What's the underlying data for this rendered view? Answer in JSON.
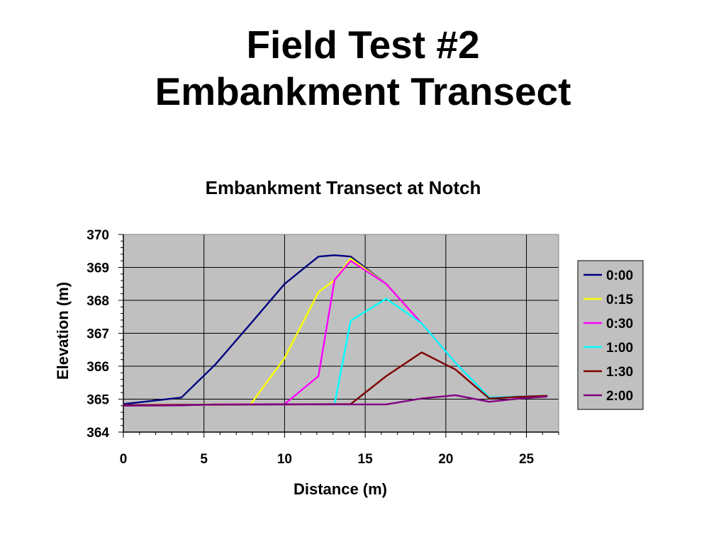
{
  "slide": {
    "title_line1": "Field Test #2",
    "title_line2": "Embankment Transect"
  },
  "chart_data": {
    "type": "line",
    "title": "Embankment Transect at Notch",
    "xlabel": "Distance (m)",
    "ylabel": "Elevation (m)",
    "xlim": [
      0,
      27
    ],
    "ylim": [
      364,
      370
    ],
    "xticks": [
      0,
      5,
      10,
      15,
      20,
      25
    ],
    "yticks": [
      364,
      365,
      366,
      367,
      368,
      369,
      370
    ],
    "grid": true,
    "plot_background": "#c0c0c0",
    "legend_position": "right",
    "series": [
      {
        "name": "0:00",
        "color": "#000080",
        "points": [
          [
            0,
            364.85
          ],
          [
            3.6,
            365.05
          ],
          [
            5.7,
            366.05
          ],
          [
            8,
            367.35
          ],
          [
            10,
            368.5
          ],
          [
            12.1,
            369.33
          ],
          [
            13.1,
            369.37
          ],
          [
            14.1,
            369.33
          ],
          [
            16.3,
            368.5
          ],
          [
            18.5,
            367.3
          ],
          [
            20.6,
            366.1
          ],
          [
            22.7,
            365.05
          ],
          [
            24.6,
            365.08
          ],
          [
            26.3,
            365.1
          ]
        ]
      },
      {
        "name": "0:15",
        "color": "#ffff00",
        "points": [
          [
            0,
            364.82
          ],
          [
            7.9,
            364.85
          ],
          [
            10,
            366.25
          ],
          [
            12.1,
            368.25
          ],
          [
            13.1,
            368.62
          ],
          [
            14.1,
            369.27
          ],
          [
            16.3,
            368.5
          ],
          [
            18.5,
            367.3
          ],
          [
            20.6,
            366.1
          ],
          [
            22.7,
            365.05
          ],
          [
            24.6,
            365.08
          ],
          [
            26.3,
            365.1
          ]
        ]
      },
      {
        "name": "0:30",
        "color": "#ff00ff",
        "points": [
          [
            0,
            364.82
          ],
          [
            10,
            364.85
          ],
          [
            12.1,
            365.7
          ],
          [
            13.1,
            368.62
          ],
          [
            14.1,
            369.2
          ],
          [
            16.3,
            368.5
          ],
          [
            18.5,
            367.3
          ],
          [
            20.6,
            366.1
          ],
          [
            22.7,
            365.05
          ],
          [
            24.6,
            365.08
          ],
          [
            26.3,
            365.1
          ]
        ]
      },
      {
        "name": "1:00",
        "color": "#00ffff",
        "points": [
          [
            0,
            364.82
          ],
          [
            13.1,
            364.85
          ],
          [
            14.1,
            367.38
          ],
          [
            16.3,
            368.05
          ],
          [
            18.5,
            367.3
          ],
          [
            20.6,
            366.1
          ],
          [
            22.7,
            365.05
          ],
          [
            24.6,
            365.08
          ],
          [
            26.3,
            365.1
          ]
        ]
      },
      {
        "name": "1:30",
        "color": "#800000",
        "points": [
          [
            0,
            364.82
          ],
          [
            14.1,
            364.85
          ],
          [
            16.3,
            365.7
          ],
          [
            18.5,
            366.42
          ],
          [
            20.6,
            365.9
          ],
          [
            22.7,
            365.02
          ],
          [
            24.6,
            365.07
          ],
          [
            26.3,
            365.1
          ]
        ]
      },
      {
        "name": "2:00",
        "color": "#800080",
        "points": [
          [
            0,
            364.8
          ],
          [
            3.6,
            364.81
          ],
          [
            5.7,
            364.84
          ],
          [
            8,
            364.84
          ],
          [
            10,
            364.84
          ],
          [
            12.1,
            364.84
          ],
          [
            14.1,
            364.84
          ],
          [
            16.3,
            364.84
          ],
          [
            18.5,
            365.02
          ],
          [
            20.6,
            365.12
          ],
          [
            22.7,
            364.92
          ],
          [
            24.6,
            365.02
          ],
          [
            26.3,
            365.08
          ]
        ]
      }
    ]
  }
}
